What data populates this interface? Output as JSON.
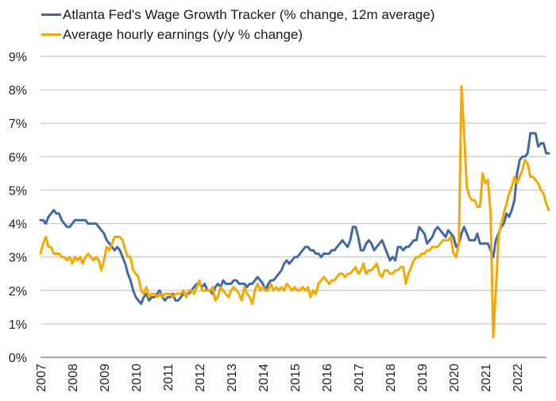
{
  "chart_data": {
    "type": "line",
    "title": "",
    "xlabel": "",
    "ylabel": "",
    "ylim": [
      0,
      9
    ],
    "y_ticks": [
      "0%",
      "1%",
      "2%",
      "3%",
      "4%",
      "5%",
      "6%",
      "7%",
      "8%",
      "9%"
    ],
    "x_ticks": [
      "2007",
      "2008",
      "2009",
      "2010",
      "2011",
      "2012",
      "2013",
      "2014",
      "2015",
      "2016",
      "2017",
      "2018",
      "2019",
      "2020",
      "2021",
      "2022"
    ],
    "x_start": "2007-01",
    "x_frequency": "monthly",
    "grid": true,
    "legend_placement": "top-left",
    "series": [
      {
        "name": "Atlanta Fed's Wage Growth Tracker (% change, 12m average)",
        "color": "#4169a6",
        "values": [
          4.1,
          4.1,
          4.0,
          4.2,
          4.3,
          4.4,
          4.3,
          4.3,
          4.1,
          4.0,
          3.9,
          3.9,
          4.0,
          4.1,
          4.1,
          4.1,
          4.1,
          4.1,
          4.0,
          4.0,
          4.0,
          4.0,
          3.9,
          3.8,
          3.7,
          3.5,
          3.4,
          3.3,
          3.2,
          3.3,
          3.2,
          3.0,
          2.8,
          2.5,
          2.3,
          2.0,
          1.8,
          1.7,
          1.6,
          1.8,
          1.9,
          1.7,
          1.8,
          1.8,
          1.9,
          2.0,
          1.8,
          1.7,
          1.8,
          1.8,
          1.9,
          1.7,
          1.7,
          1.8,
          1.9,
          1.9,
          1.9,
          2.0,
          2.1,
          2.2,
          2.2,
          2.1,
          2.2,
          2.0,
          2.0,
          1.9,
          2.1,
          2.2,
          2.1,
          2.3,
          2.2,
          2.2,
          2.2,
          2.3,
          2.3,
          2.2,
          2.2,
          2.2,
          2.1,
          2.2,
          2.2,
          2.3,
          2.4,
          2.3,
          2.2,
          2.0,
          2.2,
          2.3,
          2.3,
          2.4,
          2.5,
          2.6,
          2.8,
          2.9,
          2.8,
          2.9,
          3.0,
          3.0,
          3.1,
          3.2,
          3.3,
          3.3,
          3.2,
          3.2,
          3.1,
          3.1,
          3.0,
          3.1,
          3.1,
          3.1,
          3.2,
          3.2,
          3.3,
          3.4,
          3.5,
          3.4,
          3.3,
          3.5,
          3.9,
          3.9,
          3.6,
          3.2,
          3.2,
          3.4,
          3.5,
          3.4,
          3.2,
          3.3,
          3.4,
          3.5,
          3.3,
          3.1,
          2.9,
          3.0,
          2.9,
          3.3,
          3.3,
          3.2,
          3.3,
          3.3,
          3.4,
          3.5,
          3.5,
          3.9,
          3.8,
          3.7,
          3.4,
          3.5,
          3.6,
          3.8,
          3.9,
          3.8,
          3.7,
          3.6,
          3.8,
          3.7,
          3.6,
          3.3,
          3.4,
          3.7,
          3.9,
          3.7,
          3.5,
          3.5,
          3.5,
          3.7,
          3.4,
          3.4,
          3.4,
          3.4,
          3.2,
          3.0,
          3.5,
          3.7,
          3.9,
          4.0,
          4.3,
          4.2,
          4.4,
          4.7,
          5.5,
          5.9,
          6.0,
          6.0,
          6.1,
          6.7,
          6.7,
          6.7,
          6.3,
          6.4,
          6.4,
          6.1,
          6.1
        ]
      },
      {
        "name": "Average hourly earnings (y/y % change)",
        "color": "#f5a800",
        "values": [
          3.1,
          3.4,
          3.6,
          3.3,
          3.3,
          3.1,
          3.1,
          3.1,
          3.0,
          3.0,
          2.9,
          3.0,
          2.8,
          3.0,
          2.9,
          3.0,
          2.8,
          3.0,
          3.1,
          3.0,
          2.9,
          3.0,
          2.9,
          2.6,
          2.9,
          3.3,
          3.2,
          3.4,
          3.6,
          3.6,
          3.6,
          3.5,
          3.2,
          3.0,
          3.0,
          2.6,
          2.5,
          2.4,
          2.0,
          1.9,
          2.1,
          1.8,
          1.9,
          1.9,
          1.8,
          1.9,
          1.8,
          1.9,
          1.9,
          1.9,
          1.8,
          1.9,
          1.9,
          1.9,
          2.0,
          1.8,
          2.0,
          2.0,
          1.9,
          2.1,
          2.3,
          2.0,
          2.0,
          2.0,
          2.0,
          2.1,
          1.7,
          1.8,
          2.1,
          2.0,
          1.9,
          1.8,
          2.0,
          2.1,
          2.0,
          1.9,
          1.7,
          2.1,
          1.9,
          1.8,
          1.6,
          2.0,
          2.2,
          2.0,
          2.1,
          2.0,
          2.0,
          2.2,
          2.0,
          2.1,
          2.0,
          2.1,
          2.0,
          2.2,
          2.1,
          2.0,
          2.1,
          2.0,
          2.0,
          2.1,
          2.0,
          2.1,
          1.8,
          2.0,
          1.9,
          2.2,
          2.3,
          2.4,
          2.3,
          2.2,
          2.3,
          2.3,
          2.4,
          2.5,
          2.5,
          2.4,
          2.5,
          2.5,
          2.6,
          2.7,
          2.5,
          2.6,
          2.8,
          2.5,
          2.6,
          2.6,
          2.7,
          2.8,
          2.5,
          2.4,
          2.6,
          2.6,
          2.5,
          2.5,
          2.6,
          2.6,
          2.7,
          2.7,
          2.2,
          2.5,
          2.7,
          2.9,
          3.0,
          3.0,
          3.1,
          3.1,
          3.2,
          3.2,
          3.3,
          3.3,
          3.3,
          3.4,
          3.5,
          3.5,
          3.5,
          3.6,
          3.1,
          3.0,
          3.4,
          8.1,
          6.7,
          5.1,
          4.8,
          4.7,
          4.7,
          4.5,
          4.5,
          5.5,
          5.2,
          5.3,
          4.3,
          0.6,
          2.0,
          3.6,
          4.0,
          4.3,
          4.6,
          4.9,
          5.1,
          5.4,
          5.2,
          5.4,
          5.6,
          5.9,
          5.8,
          5.4,
          5.4,
          5.3,
          5.2,
          5.0,
          4.9,
          4.6,
          4.4
        ]
      }
    ]
  }
}
